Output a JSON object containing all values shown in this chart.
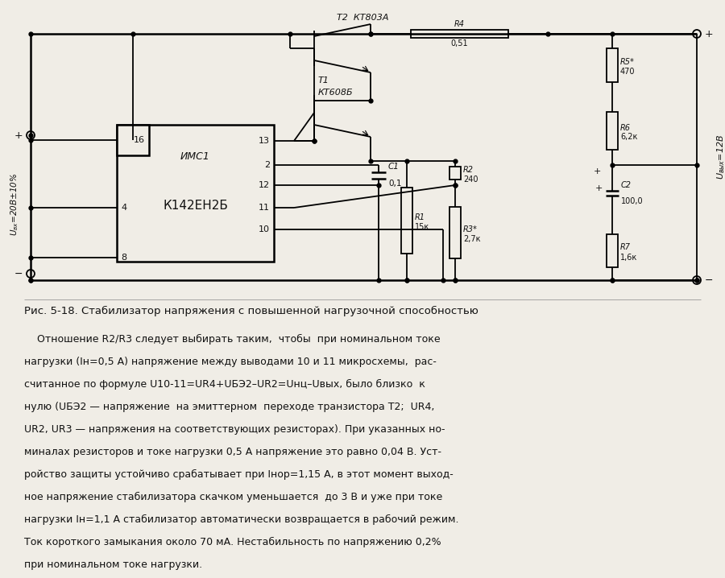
{
  "bg_color": "#f0ede6",
  "text_color": "#111111",
  "fig_caption": "Рис. 5-18. Стабилизатор напряжения с повышенной нагрузочной способностью",
  "body_lines": [
    "    Отношение R2/R3 следует выбирать таким,  чтобы  при номинальном токе",
    "нагрузки (Iн=0,5 А) напряжение между выводами 10 и 11 микросхемы,  рас-",
    "считанное по формуле U10‑11=UR4+UБЭ2–UR2=Uнц–Uвых, было близко  к",
    "нулю (UБЭ2 — напряжение  на эмиттерном  переходе транзистора T2;  UR4,",
    "UR2, UR3 — напряжения на соответствующих резисторах). При указанных но-",
    "миналах резисторов и токе нагрузки 0,5 А напряжение это равно 0,04 В. Уст-",
    "ройство защиты устойчиво срабатывает при Iнор=1,15 А, в этот момент выход-",
    "ное напряжение стабилизатора скачком уменьшается  до 3 В и уже при токе",
    "нагрузки Iн=1,1 А стабилизатор автоматически возвращается в рабочий режим.",
    "Ток короткого замыкания около 70 мА. Нестабильность по напряжению 0,2%",
    "при номинальном токе нагрузки."
  ],
  "lw": 1.3,
  "lw_thick": 1.8,
  "dot_size": 3.5
}
